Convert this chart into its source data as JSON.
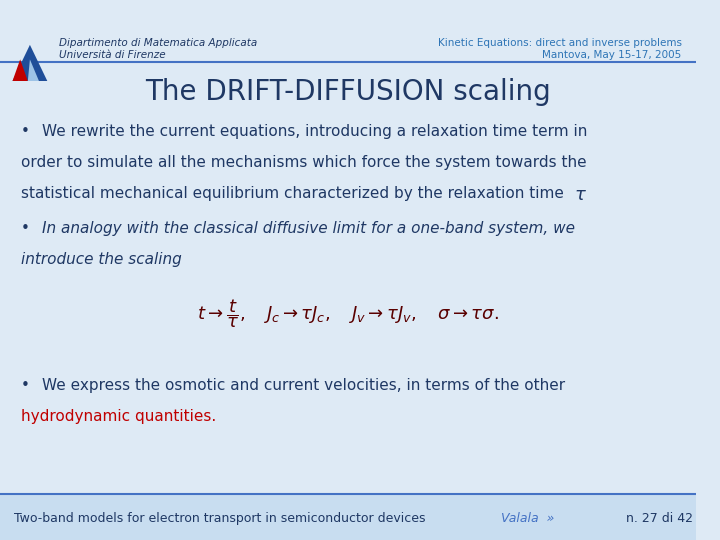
{
  "bg_color": "#deeaf5",
  "header_bg": "#deeaf5",
  "header_line_color": "#4472c4",
  "footer_line_color": "#4472c4",
  "footer_bg": "#c8ddf0",
  "header_left_line1": "Dipartimento di Matematica Applicata",
  "header_left_line2": "Università di Firenze",
  "header_right_line1": "Kinetic Equations: direct and inverse problems",
  "header_right_line2": "Mantova, May 15-17, 2005",
  "header_text_color": "#1f3864",
  "header_right_color": "#2e75b6",
  "title": "The DRIFT-DIFFUSION scaling",
  "title_color": "#1f3864",
  "title_fontsize": 20,
  "bullet1_line1": "We rewrite the current equations, introducing a relaxation time term in",
  "bullet1_line2": "order to simulate all the mechanisms which force the system towards the",
  "bullet1_line3": "statistical mechanical equilibrium characterized by the relaxation time",
  "bullet2_line1": "In analogy with the classical diffusive limit for a one-band system, we",
  "bullet2_line2": "introduce the scaling",
  "bullet3_line1": "We express the osmotic and current velocities, in terms of the other",
  "bullet3_line2": "hydrodynamic quantities.",
  "bullet3_line2_color": "#c00000",
  "text_color": "#1f3864",
  "footer_left": "Two-band models for electron transport in semiconductor devices",
  "footer_middle": "Valala  »",
  "footer_right": "n. 27 di 42",
  "footer_text_color": "#1f3864",
  "footer_link_color": "#4472c4",
  "body_fontsize": 11,
  "footer_fontsize": 9
}
